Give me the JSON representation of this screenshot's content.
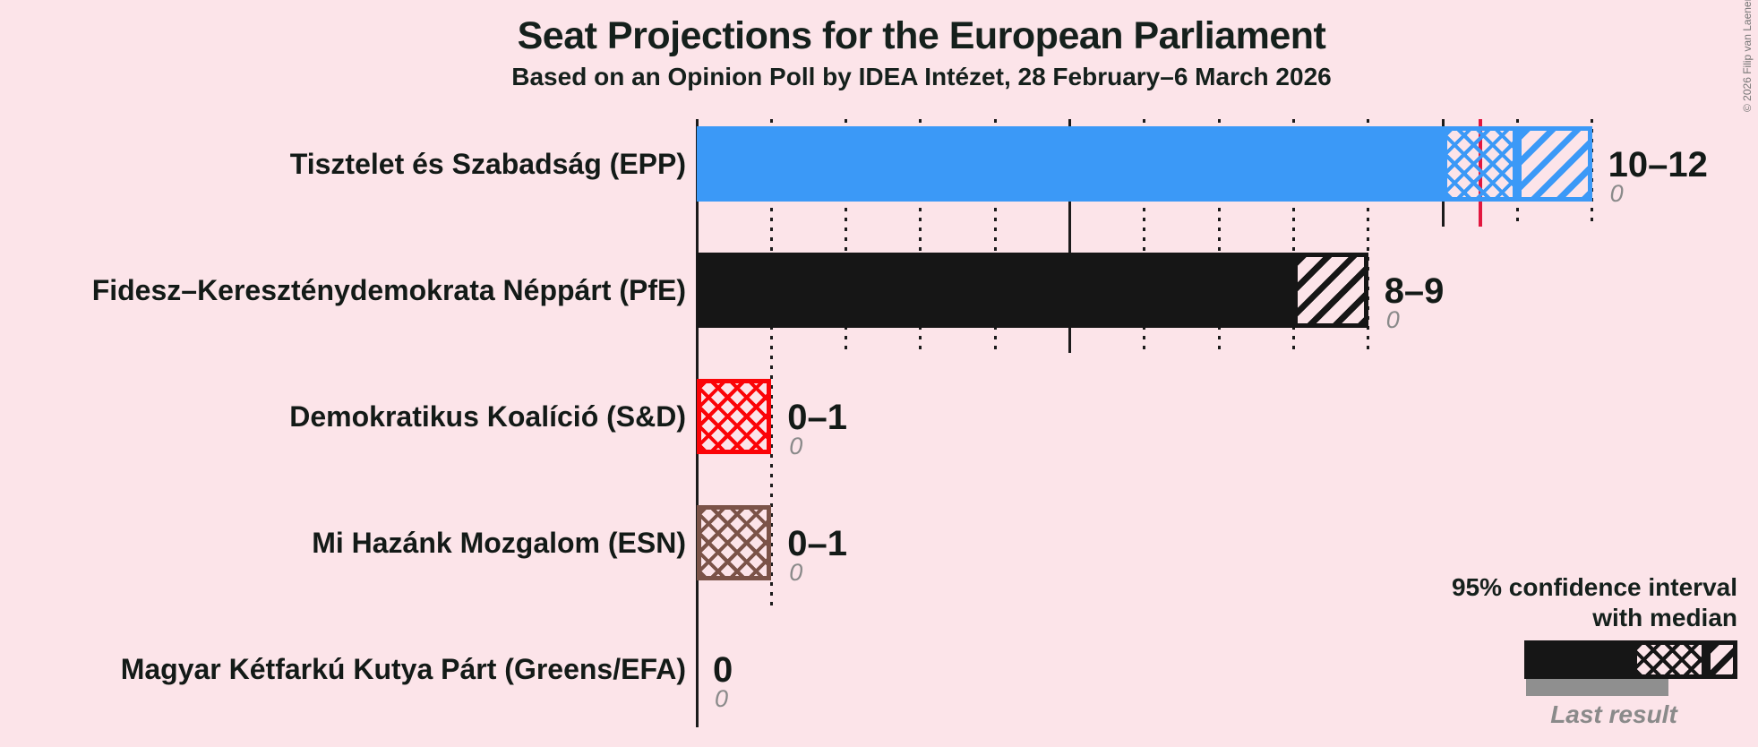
{
  "title": "Seat Projections for the European Parliament",
  "subtitle": "Based on an Opinion Poll by IDEA Intézet, 28 February–6 March 2026",
  "copyright": "© 2026 Filip van Laenen",
  "legend": {
    "ci_line1": "95% confidence interval",
    "ci_line2": "with median",
    "last_result": "Last result"
  },
  "colors": {
    "background": "#fce4e9",
    "gridline": "#1b1b1b",
    "text_dark": "#131a17",
    "text_gray": "#8a8a8a",
    "majority_line": "#e2173f",
    "last_result_bar": "#8f8f8f",
    "legend_bar": "#161616"
  },
  "chart_data": {
    "type": "bar",
    "unit": "seats",
    "xlim": [
      0,
      12
    ],
    "gridline_step": 1,
    "solid_gridline_every": 5,
    "majority_threshold": 10.5,
    "bars": [
      {
        "party": "Tisztelet és Szabadság (EPP)",
        "label": "10–12",
        "last_result": "0",
        "ci_low": 10,
        "median": 11,
        "ci_high": 12,
        "color": "#3b99f7"
      },
      {
        "party": "Fidesz–Kereszténydemokrata Néppárt (PfE)",
        "label": "8–9",
        "last_result": "0",
        "ci_low": 8,
        "median": 8,
        "ci_high": 9,
        "color": "#161616"
      },
      {
        "party": "Demokratikus Koalíció (S&D)",
        "label": "0–1",
        "last_result": "0",
        "ci_low": 0,
        "median": 1,
        "ci_high": 1,
        "color": "#fb0408"
      },
      {
        "party": "Mi Hazánk Mozgalom (ESN)",
        "label": "0–1",
        "last_result": "0",
        "ci_low": 0,
        "median": 1,
        "ci_high": 1,
        "color": "#7b5348"
      },
      {
        "party": "Magyar Kétfarkú Kutya Párt (Greens/EFA)",
        "label": "0",
        "last_result": "0",
        "ci_low": 0,
        "median": 0,
        "ci_high": 0,
        "color": "#3a7729"
      }
    ]
  }
}
